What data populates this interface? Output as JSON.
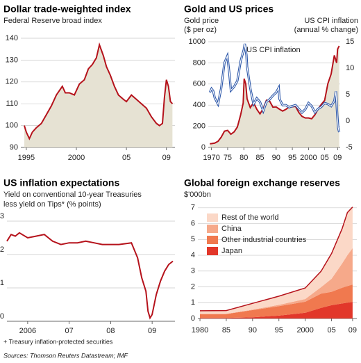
{
  "chart_data": [
    {
      "type": "area",
      "title": "Dollar trade-weighted index",
      "subtitle": [
        "Federal Reserve broad index"
      ],
      "x": [
        1994.8,
        1995.0,
        1995.3,
        1995.6,
        1996.0,
        1996.5,
        1997.0,
        1997.5,
        1998.0,
        1998.6,
        1998.9,
        1999.3,
        1999.8,
        2000.3,
        2000.8,
        2001.2,
        2001.6,
        2002.0,
        2002.3,
        2002.7,
        2003.0,
        2003.4,
        2003.8,
        2004.2,
        2004.7,
        2005.0,
        2005.5,
        2006.0,
        2006.5,
        2007.0,
        2007.5,
        2008.0,
        2008.3,
        2008.6,
        2008.8,
        2009.0,
        2009.2,
        2009.4,
        2009.6
      ],
      "values": [
        100,
        97,
        94,
        97,
        99,
        101,
        105,
        109,
        114,
        118,
        115,
        115,
        114,
        119,
        121,
        126,
        128,
        131,
        137,
        132,
        127,
        123,
        118,
        114,
        112,
        111,
        114,
        112,
        110,
        108,
        104,
        101,
        100,
        101,
        113,
        121,
        118,
        111,
        110
      ],
      "color": "#b5121b",
      "fill": "#e6e2d3",
      "xlim": [
        1994.45,
        2009.85
      ],
      "xticks": [
        {
          "value": 1995,
          "label": "1995"
        },
        2000,
        {
          "value": 2005,
          "label": "05"
        },
        {
          "value": 2009,
          "label": "09"
        }
      ],
      "ylim": [
        90,
        140
      ],
      "yticks": [
        90,
        100,
        110,
        120,
        130,
        140
      ],
      "grid": true
    },
    {
      "type": "line",
      "title": "Gold and US prices",
      "ylabel": [
        "Gold price",
        "($ per oz)"
      ],
      "y2label": [
        "US CPI inflation",
        "(annual % change)"
      ],
      "annotations": [
        {
          "text": "US CPI inflation"
        },
        {
          "text": "Gold price"
        }
      ],
      "series": [
        {
          "name": "Gold price",
          "color": "#b5121b",
          "fill": "#e6e2d3",
          "x": [
            1969.5,
            1970,
            1971,
            1972,
            1973,
            1974,
            1975,
            1976,
            1977,
            1978,
            1979,
            1979.8,
            1980.1,
            1980.6,
            1981,
            1982,
            1983,
            1984,
            1985,
            1986,
            1987,
            1988,
            1989,
            1990,
            1991,
            1992,
            1993,
            1994,
            1995,
            1996,
            1997,
            1998,
            1999,
            2000,
            2001,
            2002,
            2003,
            2004,
            2005,
            2006,
            2007,
            2008,
            2008.7,
            2009,
            2009.5
          ],
          "values": [
            35,
            36,
            41,
            58,
            97,
            154,
            161,
            125,
            148,
            193,
            307,
            420,
            650,
            600,
            460,
            376,
            424,
            361,
            317,
            368,
            447,
            437,
            381,
            383,
            362,
            344,
            360,
            384,
            384,
            388,
            331,
            294,
            279,
            279,
            271,
            310,
            363,
            409,
            445,
            604,
            695,
            872,
            800,
            930,
            960
          ]
        },
        {
          "name": "US CPI inflation",
          "color": "#2a55a8",
          "axis": "y2",
          "x": [
            1969.5,
            1970,
            1970.5,
            1971,
            1972,
            1973,
            1974,
            1974.9,
            1975.5,
            1976,
            1977,
            1978,
            1979,
            1980,
            1980.3,
            1980.8,
            1981,
            1982,
            1983,
            1984,
            1985,
            1986,
            1987,
            1988,
            1989,
            1990,
            1990.8,
            1991,
            1992,
            1993,
            1994,
            1995,
            1996,
            1997,
            1998,
            1999,
            2000,
            2001,
            2002,
            2003,
            2004,
            2005,
            2006,
            2007,
            2008,
            2008.5,
            2008.9,
            2009.2,
            2009.5
          ],
          "values": [
            5.4,
            6.1,
            5.7,
            4.4,
            3.2,
            6.2,
            11,
            12.3,
            9.1,
            5.8,
            6.5,
            7.6,
            11.3,
            13.5,
            14.6,
            12.5,
            10.3,
            6.2,
            3.2,
            4.3,
            3.6,
            1.9,
            3.6,
            4.1,
            4.8,
            5.4,
            6.3,
            4.2,
            3.0,
            3.0,
            2.6,
            2.8,
            3.0,
            2.3,
            1.6,
            2.2,
            3.4,
            2.8,
            1.6,
            2.3,
            2.7,
            3.4,
            3.2,
            2.8,
            3.8,
            5.6,
            1.1,
            -1.3,
            -2.1
          ]
        }
      ],
      "xlim": [
        1969,
        2009.8
      ],
      "xticks": [
        {
          "value": 1970,
          "label": "1970"
        },
        {
          "value": 1975,
          "label": "75"
        },
        {
          "value": 1980,
          "label": "80"
        },
        {
          "value": 1985,
          "label": "85"
        },
        {
          "value": 1990,
          "label": "90"
        },
        {
          "value": 1995,
          "label": "95"
        },
        2000,
        {
          "value": 2005,
          "label": "05"
        },
        {
          "value": 2009,
          "label": "09"
        }
      ],
      "ylim": [
        0,
        1000
      ],
      "yticks": [
        0,
        200,
        400,
        600,
        800,
        1000
      ],
      "y2lim": [
        -5,
        15
      ],
      "y2ticks": [
        -5,
        0,
        5,
        10,
        15
      ],
      "grid": true
    },
    {
      "type": "line",
      "title": "US inflation expectations",
      "subtitle": [
        "Yield on conventional 10-year Treasuries",
        "less yield on Tips* (% points)"
      ],
      "x": [
        2005.5,
        2005.6,
        2005.7,
        2005.8,
        2006.0,
        2006.2,
        2006.4,
        2006.6,
        2006.8,
        2007.0,
        2007.2,
        2007.4,
        2007.6,
        2007.8,
        2008.0,
        2008.2,
        2008.5,
        2008.65,
        2008.75,
        2008.85,
        2008.9,
        2008.95,
        2009.0,
        2009.1,
        2009.2,
        2009.3,
        2009.4,
        2009.5
      ],
      "values": [
        2.4,
        2.6,
        2.55,
        2.65,
        2.5,
        2.55,
        2.6,
        2.4,
        2.3,
        2.35,
        2.35,
        2.4,
        2.35,
        2.3,
        2.3,
        2.3,
        2.35,
        1.9,
        1.3,
        0.9,
        0.3,
        0.1,
        0.2,
        0.8,
        1.2,
        1.5,
        1.7,
        1.8
      ],
      "color": "#b5121b",
      "xlim": [
        2005.5,
        2009.55
      ],
      "xticks": [
        2006,
        {
          "value": 2007,
          "label": "07"
        },
        {
          "value": 2008,
          "label": "08"
        },
        {
          "value": 2009,
          "label": "09"
        }
      ],
      "ylim": [
        0,
        3
      ],
      "yticks": [
        0,
        1,
        2,
        3
      ],
      "grid": true,
      "footnote": "+ Treasury inflation-protected securities"
    },
    {
      "type": "stacked_area",
      "title": "Global foreign exchange reserves",
      "subtitle": [
        "$'000bn"
      ],
      "x": [
        1980,
        1985,
        1990,
        1995,
        2000,
        2003,
        2005,
        2007,
        2008,
        2009
      ],
      "series": [
        {
          "name": "Japan",
          "color": "#e2372a",
          "values": [
            0.03,
            0.03,
            0.08,
            0.18,
            0.36,
            0.67,
            0.84,
            0.95,
            1.0,
            1.05
          ]
        },
        {
          "name": "Other industrial countries",
          "color": "#f0794f",
          "values": [
            0.25,
            0.25,
            0.45,
            0.6,
            0.7,
            0.9,
            0.85,
            1.0,
            1.05,
            1.1
          ]
        },
        {
          "name": "China",
          "color": "#f6a98a",
          "values": [
            0.01,
            0.02,
            0.03,
            0.08,
            0.17,
            0.41,
            0.82,
            1.53,
            1.95,
            2.3
          ]
        },
        {
          "name": "Rest of the world",
          "color": "#fbd8c7",
          "values": [
            0.2,
            0.2,
            0.4,
            0.55,
            0.7,
            1.0,
            1.6,
            2.2,
            2.7,
            2.6
          ]
        }
      ],
      "xlim": [
        1979.6,
        2009.8
      ],
      "xticks": [
        1980,
        {
          "value": 1985,
          "label": "85"
        },
        {
          "value": 1990,
          "label": "90"
        },
        {
          "value": 1995,
          "label": "95"
        },
        2000,
        {
          "value": 2005,
          "label": "05"
        },
        {
          "value": 2009,
          "label": "09"
        }
      ],
      "ylim": [
        0,
        7.3
      ],
      "yticks": [
        0,
        1,
        2,
        3,
        4,
        5,
        6,
        7
      ],
      "grid": true
    }
  ],
  "source": "Sources: Thomson Reuters Datastream; IMF"
}
